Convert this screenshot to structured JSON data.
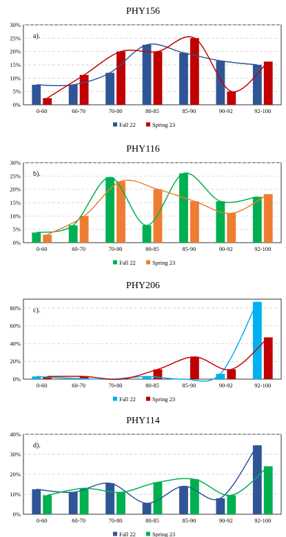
{
  "chart_data": [
    {
      "type": "bar",
      "title": "PHY156",
      "panel_label": "a).",
      "categories": [
        "0-60",
        "60-70",
        "70-80",
        "80-85",
        "85-90",
        "90-92",
        "92-100"
      ],
      "ylim": [
        0,
        30
      ],
      "yticks": [
        0,
        5,
        10,
        15,
        20,
        25,
        30
      ],
      "ytick_labels": [
        "0%",
        "5%",
        "10%",
        "15%",
        "20%",
        "25%",
        "30%"
      ],
      "grid": true,
      "legend_position": "bottom",
      "series": [
        {
          "name": "Fall 22",
          "color": "#2F5597",
          "values": [
            7.5,
            7.5,
            12,
            22.5,
            19.5,
            16.5,
            15
          ]
        },
        {
          "name": "Spring 23",
          "color": "#C00000",
          "values": [
            2.5,
            11.2,
            20,
            20,
            25,
            5,
            16.2
          ]
        }
      ]
    },
    {
      "type": "bar",
      "title": "PHY116",
      "panel_label": "b).",
      "categories": [
        "0-60",
        "60-70",
        "70-80",
        "80-85",
        "85-90",
        "90-92",
        "92-100"
      ],
      "ylim": [
        0,
        30
      ],
      "yticks": [
        0,
        5,
        10,
        15,
        20,
        25,
        30
      ],
      "ytick_labels": [
        "0%",
        "5%",
        "10%",
        "15%",
        "20%",
        "25%",
        "30%"
      ],
      "grid": true,
      "legend_position": "bottom",
      "series": [
        {
          "name": "Fall 22",
          "color": "#00B050",
          "values": [
            3.8,
            6.5,
            24.5,
            6.5,
            26,
            15.5,
            17.2
          ]
        },
        {
          "name": "Spring 23",
          "color": "#ED7D31",
          "values": [
            3,
            10,
            23,
            20,
            15.5,
            11,
            18.2
          ]
        }
      ]
    },
    {
      "type": "bar",
      "title": "PHY206",
      "panel_label": "c).",
      "categories": [
        "0-60",
        "60-70",
        "70-80",
        "80-85",
        "85-90",
        "90-92",
        "92-100"
      ],
      "ylim": [
        0,
        90
      ],
      "yticks": [
        0,
        20,
        40,
        60,
        80
      ],
      "ytick_labels": [
        "0%",
        "20%",
        "40%",
        "60%",
        "80%"
      ],
      "grid": true,
      "legend_position": "bottom",
      "series": [
        {
          "name": "Fall 22",
          "color": "#00B0F0",
          "values": [
            3,
            1,
            0,
            3,
            0,
            6,
            87
          ]
        },
        {
          "name": "Spring 23",
          "color": "#C00000",
          "values": [
            3,
            3,
            0,
            11,
            25,
            11,
            47
          ]
        }
      ]
    },
    {
      "type": "bar",
      "title": "PHY114",
      "panel_label": "d).",
      "categories": [
        "0-60",
        "60-70",
        "70-80",
        "80-85",
        "85-90",
        "90-92",
        "92-100"
      ],
      "ylim": [
        0,
        40
      ],
      "yticks": [
        0,
        10,
        20,
        30,
        40
      ],
      "ytick_labels": [
        "0%",
        "10%",
        "20%",
        "30%",
        "40%"
      ],
      "grid": true,
      "legend_position": "bottom",
      "series": [
        {
          "name": "Fall 22",
          "color": "#2F5597",
          "values": [
            12.5,
            11,
            15.5,
            5.5,
            14,
            8,
            34.5
          ]
        },
        {
          "name": "Spring 23",
          "color": "#00B050",
          "values": [
            9.5,
            13,
            11,
            16,
            17.5,
            9.5,
            24
          ]
        }
      ]
    }
  ]
}
